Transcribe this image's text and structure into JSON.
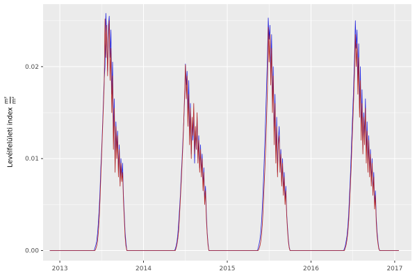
{
  "figure": {
    "ylabel_text": "Levélfelületi index",
    "ylabel_frac_numerator": "m²",
    "ylabel_frac_denominator": "m²"
  },
  "chart_data": {
    "type": "line",
    "title": "",
    "xlabel": "",
    "ylabel": "Levélfelületi index (m²/m²)",
    "legend": "none",
    "grid": true,
    "panel_bg": "#EBEBEB",
    "grid_color": "#FFFFFF",
    "tick_label_color": "#4D4D4D",
    "xlim": [
      2012.8,
      2017.2
    ],
    "ylim": [
      -0.0011,
      0.0268
    ],
    "x_data_range": [
      2012.88,
      2017.05
    ],
    "x_ticks": [
      2013,
      2014,
      2015,
      2016,
      2017
    ],
    "x_tick_labels": [
      "2013",
      "2014",
      "2015",
      "2016",
      "2017"
    ],
    "y_ticks": [
      0,
      0.01,
      0.02
    ],
    "y_tick_labels": [
      "0.00",
      "0.01",
      "0.02"
    ],
    "scale": 0.001,
    "series": [
      {
        "name": "blue",
        "color": "#2222DD",
        "seasons": [
          {
            "start": 2013.41,
            "step": 0.01,
            "values": [
              0,
              0.3,
              0.6,
              1,
              1.8,
              3,
              4.5,
              6.5,
              9,
              11,
              13.5,
              16,
              18.5,
              20,
              25.8,
              23.5,
              19.5,
              24.5,
              25.5,
              21,
              24,
              17,
              20.5,
              13,
              16.5,
              9.5,
              14,
              11,
              13,
              8.5,
              11.5,
              7.5,
              10,
              8,
              9.5,
              6,
              4,
              2,
              0.8,
              0
            ]
          },
          {
            "start": 2014.37,
            "step": 0.01,
            "values": [
              0,
              0.2,
              0.5,
              1,
              1.8,
              3,
              4.5,
              6,
              8,
              10,
              12,
              14,
              16.5,
              20.3,
              18,
              19.5,
              15,
              18.5,
              12.5,
              16,
              10.5,
              14,
              12,
              15,
              9.5,
              13,
              11,
              14.5,
              10,
              12.5,
              9,
              11.5,
              8.5,
              10.5,
              7,
              9,
              5.5,
              7,
              4,
              2,
              0.8,
              0
            ]
          },
          {
            "start": 2015.36,
            "step": 0.01,
            "values": [
              0,
              0.3,
              0.7,
              1.2,
              2,
              3.2,
              5,
              7,
              9.5,
              12,
              15,
              18,
              21,
              25.3,
              23,
              24.5,
              19.5,
              23.5,
              16,
              20,
              12.5,
              17,
              10,
              14.5,
              8.5,
              12,
              13.5,
              9,
              11,
              7.5,
              10,
              6.5,
              8.5,
              5.5,
              7,
              4,
              2.5,
              1.2,
              0.4,
              0
            ]
          },
          {
            "start": 2016.39,
            "step": 0.01,
            "values": [
              0,
              0.2,
              0.5,
              1,
              1.6,
              2.6,
              4,
              6,
              8,
              10.5,
              13,
              15.5,
              18,
              21,
              25,
              22,
              24,
              18.5,
              22.5,
              15.5,
              20,
              13,
              17.5,
              11,
              15,
              12.5,
              16.5,
              10.5,
              14,
              9.5,
              12.5,
              8.5,
              11,
              7.5,
              10,
              6.5,
              8.5,
              5,
              6.5,
              3.5,
              2,
              1,
              0.3,
              0
            ]
          }
        ]
      },
      {
        "name": "red",
        "color": "#B22222",
        "seasons": [
          {
            "start": 2013.42,
            "step": 0.01,
            "values": [
              0,
              0.2,
              0.5,
              1,
              2,
              3.5,
              5.5,
              8,
              10.5,
              13,
              15.5,
              18,
              25.2,
              21,
              24.5,
              19,
              23,
              25,
              18.5,
              22,
              15,
              19,
              11,
              15.5,
              8.5,
              13.5,
              10,
              12.5,
              8,
              11,
              7,
              9.5,
              7.5,
              8.5,
              5.5,
              3.5,
              1.5,
              0.5,
              0
            ]
          },
          {
            "start": 2014.38,
            "step": 0.01,
            "values": [
              0,
              0.3,
              0.7,
              1.3,
              2.2,
              3.8,
              5.5,
              7.5,
              9.5,
              11.5,
              14,
              17,
              20.2,
              16.5,
              19,
              13.5,
              17,
              11.5,
              15.5,
              10,
              14.5,
              12.5,
              16,
              10.5,
              13.5,
              11,
              15,
              9.5,
              12,
              8.5,
              11,
              8,
              10,
              6.5,
              8.5,
              5,
              6.5,
              3.5,
              1.8,
              0.6,
              0
            ]
          },
          {
            "start": 2015.37,
            "step": 0.01,
            "values": [
              0,
              0.2,
              0.5,
              1,
              1.8,
              3,
              4.8,
              7,
              9,
              11.5,
              14.5,
              17.5,
              24.3,
              20.5,
              23.5,
              18,
              22,
              15,
              19,
              11.5,
              16,
              9.5,
              13.5,
              8,
              11.5,
              12.5,
              8.5,
              10.5,
              7,
              9.5,
              6,
              8,
              5,
              6.5,
              3.8,
              2.2,
              1,
              0.3,
              0
            ]
          },
          {
            "start": 2016.4,
            "step": 0.01,
            "values": [
              0,
              0.3,
              0.6,
              1.2,
              2,
              3.2,
              5,
              7,
              9,
              11.5,
              14,
              16.5,
              19.5,
              23.5,
              20,
              22.5,
              17,
              21,
              14.5,
              18.5,
              12,
              16,
              10.5,
              14.5,
              11.5,
              15.5,
              9.5,
              13,
              8.5,
              12,
              8,
              10.5,
              7,
              9.5,
              6,
              8,
              4.5,
              6,
              3,
              1.6,
              0.8,
              0.2,
              0
            ]
          }
        ]
      }
    ]
  }
}
